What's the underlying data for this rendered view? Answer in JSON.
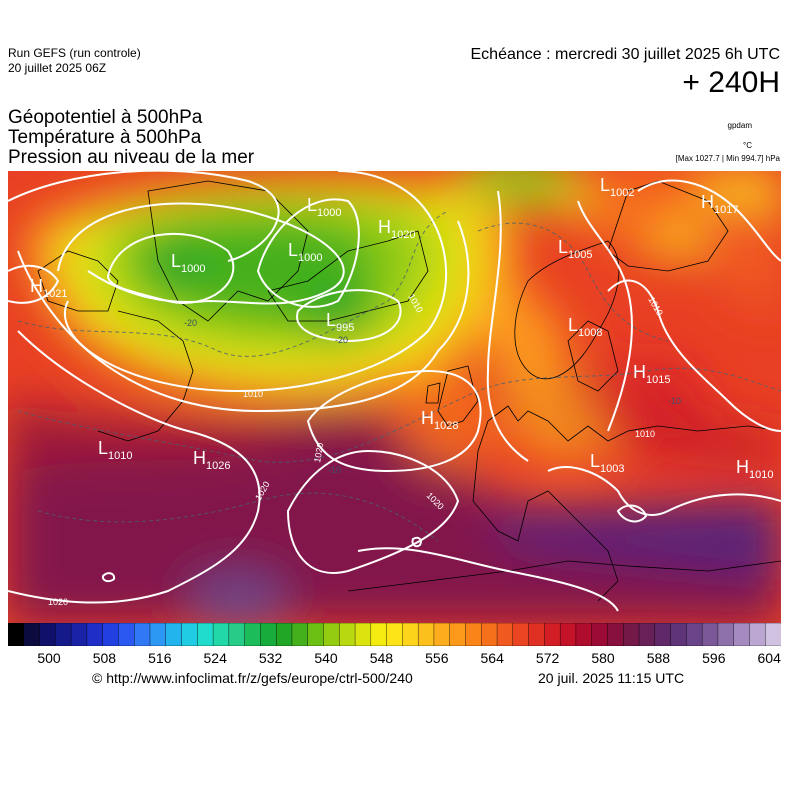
{
  "header": {
    "run_title": "Run GEFS (run controle)",
    "run_date": "20 juillet 2025 06Z",
    "echeance": "Echéance : mercredi 30 juillet 2025 6h UTC",
    "lead_time": "+ 240H",
    "title_lines": [
      "Géopotentiel à 500hPa",
      "Température à 500hPa",
      "Pression au niveau de la mer"
    ],
    "unit_gpdam": "gpdam",
    "unit_temp": "°C",
    "max_min": "[Max 1027.7 | Min 994.7] hPa"
  },
  "pressure_systems": [
    {
      "type": "L",
      "value": "1000"
    },
    {
      "type": "L",
      "value": "1000"
    },
    {
      "type": "L",
      "value": "1000"
    },
    {
      "type": "H",
      "value": "1020"
    },
    {
      "type": "L",
      "value": "995"
    },
    {
      "type": "L",
      "value": "1002"
    },
    {
      "type": "H",
      "value": "1017"
    },
    {
      "type": "L",
      "value": "1005"
    },
    {
      "type": "L",
      "value": "1008"
    },
    {
      "type": "H",
      "value": "1015"
    },
    {
      "type": "H",
      "value": "1021"
    },
    {
      "type": "H",
      "value": "1028"
    },
    {
      "type": "L",
      "value": "1010"
    },
    {
      "type": "H",
      "value": "1026"
    },
    {
      "type": "L",
      "value": "1003"
    },
    {
      "type": "H",
      "value": "1010"
    }
  ],
  "isobar_labels": [
    "1010",
    "1010",
    "1010",
    "1010",
    "1020",
    "1020",
    "1020",
    "1020"
  ],
  "temperature_labels": [
    "-20",
    "-20",
    "-10",
    "-10"
  ],
  "colorbar": {
    "ticks": [
      "500",
      "508",
      "516",
      "524",
      "532",
      "540",
      "548",
      "556",
      "564",
      "572",
      "580",
      "588",
      "596",
      "604"
    ],
    "colors": [
      "#000000",
      "#0b0b40",
      "#100f6a",
      "#141a8a",
      "#1a22a6",
      "#1e2ec6",
      "#2240e0",
      "#2a58f0",
      "#3078f6",
      "#2c98f4",
      "#22b4ec",
      "#20cce4",
      "#20dccc",
      "#22d8a8",
      "#26cc88",
      "#1cbc5a",
      "#18ac3c",
      "#22a626",
      "#44b01c",
      "#6cc014",
      "#94cc12",
      "#b8d810",
      "#dce410",
      "#f4ec10",
      "#fce418",
      "#fcd41a",
      "#fcc01c",
      "#fcac1c",
      "#fc981a",
      "#fa8418",
      "#f6701c",
      "#f05a20",
      "#ea4422",
      "#e03024",
      "#d41e26",
      "#c41228",
      "#b00c2e",
      "#9c0a36",
      "#88103e",
      "#741848",
      "#682058",
      "#602868",
      "#603478",
      "#6a4488",
      "#7a5898",
      "#8e70aa",
      "#a48abe",
      "#baa6d0",
      "#d0c2e0"
    ]
  },
  "footer": {
    "credit": "© http://www.infoclimat.fr/z/gefs/europe/ctrl-500/240",
    "updated": "20 juil. 2025 11:15 UTC"
  }
}
